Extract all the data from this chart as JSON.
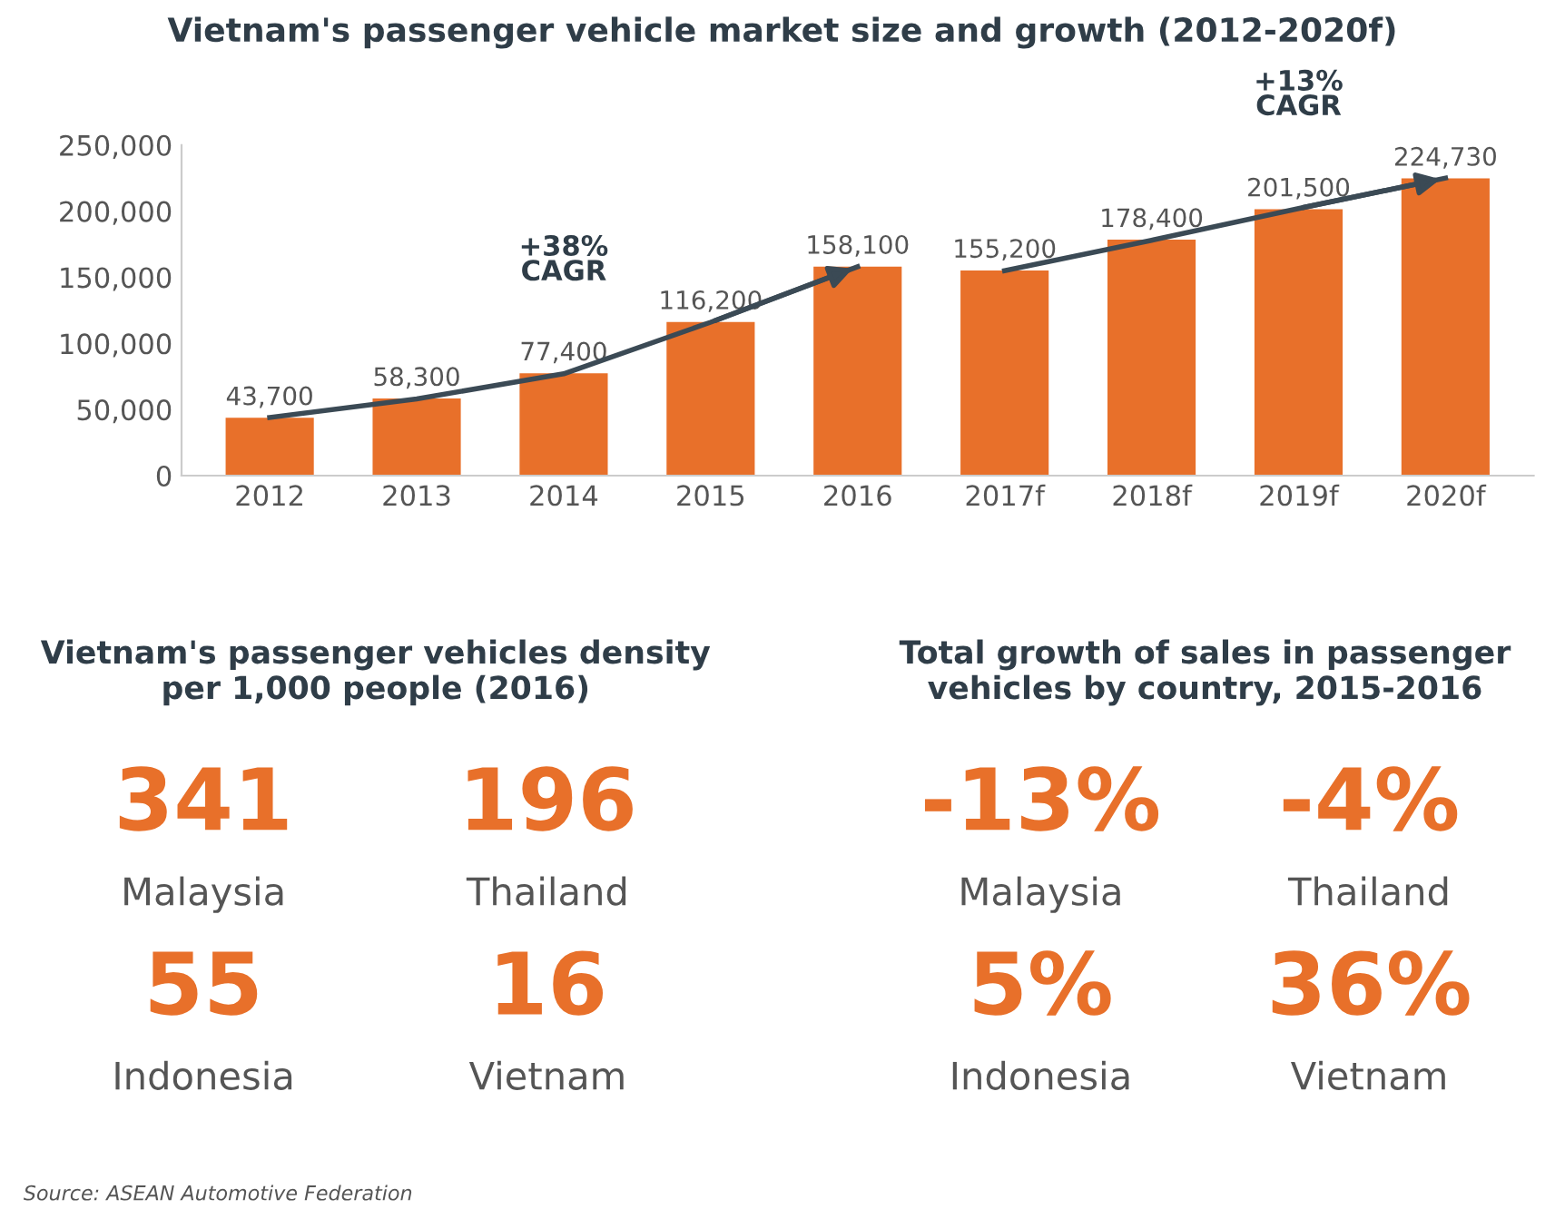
{
  "chart_data": [
    {
      "type": "bar",
      "title": "Vietnam's passenger vehicle market size and growth (2012-2020f)",
      "categories": [
        "2012",
        "2013",
        "2014",
        "2015",
        "2016",
        "2017f",
        "2018f",
        "2019f",
        "2020f"
      ],
      "series": [
        {
          "type": "bar",
          "color": "#e8702a",
          "values": [
            43700,
            58300,
            77400,
            116200,
            158100,
            155200,
            178400,
            201500,
            224730
          ],
          "value_labels": [
            "43,700",
            "58,300",
            "77,400",
            "116,200",
            "158,100",
            "155,200",
            "178,400",
            "201,500",
            "224,730"
          ]
        },
        {
          "type": "line",
          "color": "#3b4a55",
          "values": [
            44000,
            58000,
            77000,
            116000,
            158000,
            null,
            null,
            null,
            null
          ]
        },
        {
          "type": "line",
          "color": "#3b4a55",
          "values": [
            null,
            null,
            null,
            null,
            null,
            155000,
            178000,
            202000,
            225000
          ]
        }
      ],
      "ylim": [
        0,
        250000
      ],
      "yticks": [
        0,
        {
          "value": 50000,
          "label": "50,000"
        },
        {
          "value": 100000,
          "label": "100,000"
        },
        {
          "value": 150000,
          "label": "150,000"
        },
        {
          "value": 200000,
          "label": "200,000"
        },
        {
          "value": 250000,
          "label": "250,000"
        }
      ],
      "annotations": [
        "+38%\nCAGR",
        "+13%\nCAGR",
        "Source: ASEAN Automotive Federation"
      ]
    },
    {
      "type": "other",
      "title": "Vietnam's passenger vehicles density\nper 1,000 people (2016)",
      "annotations": [
        "341",
        "Malaysia",
        "196",
        "Thailand",
        "55",
        "Indonesia",
        "16",
        "Vietnam"
      ]
    },
    {
      "type": "other",
      "title": "Total growth of sales in passenger\nvehicles by country, 2015-2016",
      "annotations": [
        "-13%",
        "Malaysia",
        "-4%",
        "Thailand",
        "5%",
        "Indonesia",
        "36%",
        "Vietnam"
      ]
    }
  ]
}
